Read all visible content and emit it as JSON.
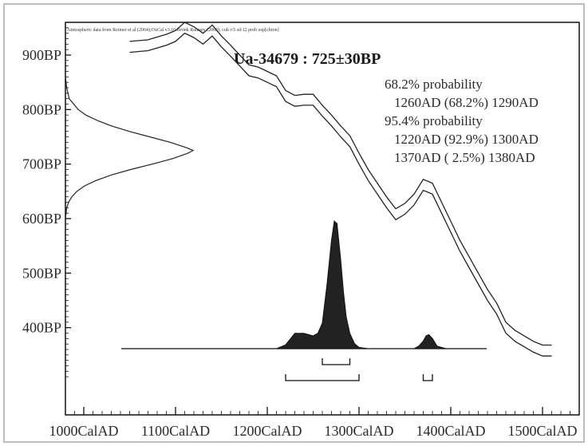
{
  "chart_data": {
    "type": "area",
    "title": "Ua-34679 : 725±30BP",
    "source_note": "Atmospheric data from Reimer et al (2004);OxCal v3.10 Bronk Ramsey (2005); cub r:5 sd:12 prob usp[chron]",
    "x_axis": {
      "ticks": [
        1000,
        1100,
        1200,
        1300,
        1400,
        1500
      ],
      "tick_labels": [
        "1000CalAD",
        "1100CalAD",
        "1200CalAD",
        "1300CalAD",
        "1400CalAD",
        "1500CalAD"
      ],
      "range": [
        980,
        1540
      ]
    },
    "y_axis": {
      "ticks": [
        400,
        500,
        600,
        700,
        800,
        900
      ],
      "tick_labels": [
        "400BP",
        "500BP",
        "600BP",
        "700BP",
        "800BP",
        "900BP"
      ],
      "range": [
        240,
        960
      ]
    },
    "probability_summary": [
      {
        "header": "68.2% probability",
        "lines": [
          "1260AD (68.2%) 1290AD"
        ]
      },
      {
        "header": "95.4% probability",
        "lines": [
          "1220AD (92.9%) 1300AD",
          "1370AD ( 2.5%) 1380AD"
        ]
      }
    ],
    "ranges_68": [
      [
        1260,
        1290
      ]
    ],
    "ranges_95": [
      [
        1220,
        1300
      ],
      [
        1370,
        1380
      ]
    ],
    "calibration_curve": {
      "year": [
        1050,
        1070,
        1090,
        1100,
        1110,
        1120,
        1130,
        1140,
        1150,
        1160,
        1170,
        1180,
        1190,
        1200,
        1210,
        1220,
        1230,
        1240,
        1250,
        1260,
        1270,
        1280,
        1290,
        1300,
        1310,
        1320,
        1330,
        1340,
        1350,
        1360,
        1370,
        1380,
        1390,
        1400,
        1410,
        1420,
        1430,
        1440,
        1450,
        1460,
        1470,
        1480,
        1490,
        1500,
        1510
      ],
      "upper": [
        925,
        928,
        938,
        945,
        960,
        952,
        940,
        955,
        935,
        918,
        900,
        882,
        878,
        870,
        862,
        835,
        826,
        828,
        828,
        808,
        790,
        770,
        752,
        720,
        690,
        665,
        640,
        618,
        628,
        645,
        672,
        665,
        630,
        595,
        560,
        530,
        500,
        470,
        445,
        410,
        395,
        385,
        375,
        368,
        368
      ],
      "lower": [
        905,
        908,
        918,
        925,
        940,
        932,
        920,
        935,
        915,
        898,
        880,
        862,
        858,
        850,
        842,
        815,
        806,
        808,
        808,
        788,
        770,
        750,
        732,
        700,
        670,
        645,
        620,
        598,
        608,
        625,
        652,
        645,
        610,
        575,
        540,
        510,
        480,
        450,
        425,
        390,
        375,
        365,
        355,
        348,
        348
      ]
    },
    "radiocarbon_date": {
      "bp": 725,
      "error": 30,
      "bp_values": [
        860,
        840,
        820,
        800,
        790,
        780,
        770,
        760,
        750,
        740,
        730,
        725,
        720,
        710,
        700,
        690,
        680,
        670,
        660,
        650,
        640,
        630,
        620,
        600
      ],
      "relative_density": [
        0.0,
        0.01,
        0.03,
        0.1,
        0.16,
        0.25,
        0.36,
        0.5,
        0.66,
        0.82,
        0.95,
        1.0,
        0.96,
        0.84,
        0.68,
        0.51,
        0.36,
        0.24,
        0.15,
        0.09,
        0.05,
        0.025,
        0.01,
        0.0
      ]
    },
    "calibrated_distribution": {
      "year": [
        1210,
        1220,
        1230,
        1240,
        1250,
        1255,
        1260,
        1265,
        1270,
        1273,
        1276,
        1280,
        1283,
        1286,
        1290,
        1295,
        1300,
        1310,
        1320,
        1330,
        1340,
        1350,
        1360,
        1365,
        1370,
        1373,
        1376,
        1380,
        1385,
        1395
      ],
      "relative_density": [
        0.0,
        0.03,
        0.12,
        0.12,
        0.1,
        0.12,
        0.2,
        0.5,
        0.85,
        1.0,
        0.98,
        0.7,
        0.45,
        0.25,
        0.12,
        0.04,
        0.01,
        0.0,
        0.0,
        0.0,
        0.0,
        0.0,
        0.0,
        0.02,
        0.06,
        0.1,
        0.11,
        0.08,
        0.02,
        0.0
      ]
    },
    "grid": false,
    "legend": "none"
  }
}
